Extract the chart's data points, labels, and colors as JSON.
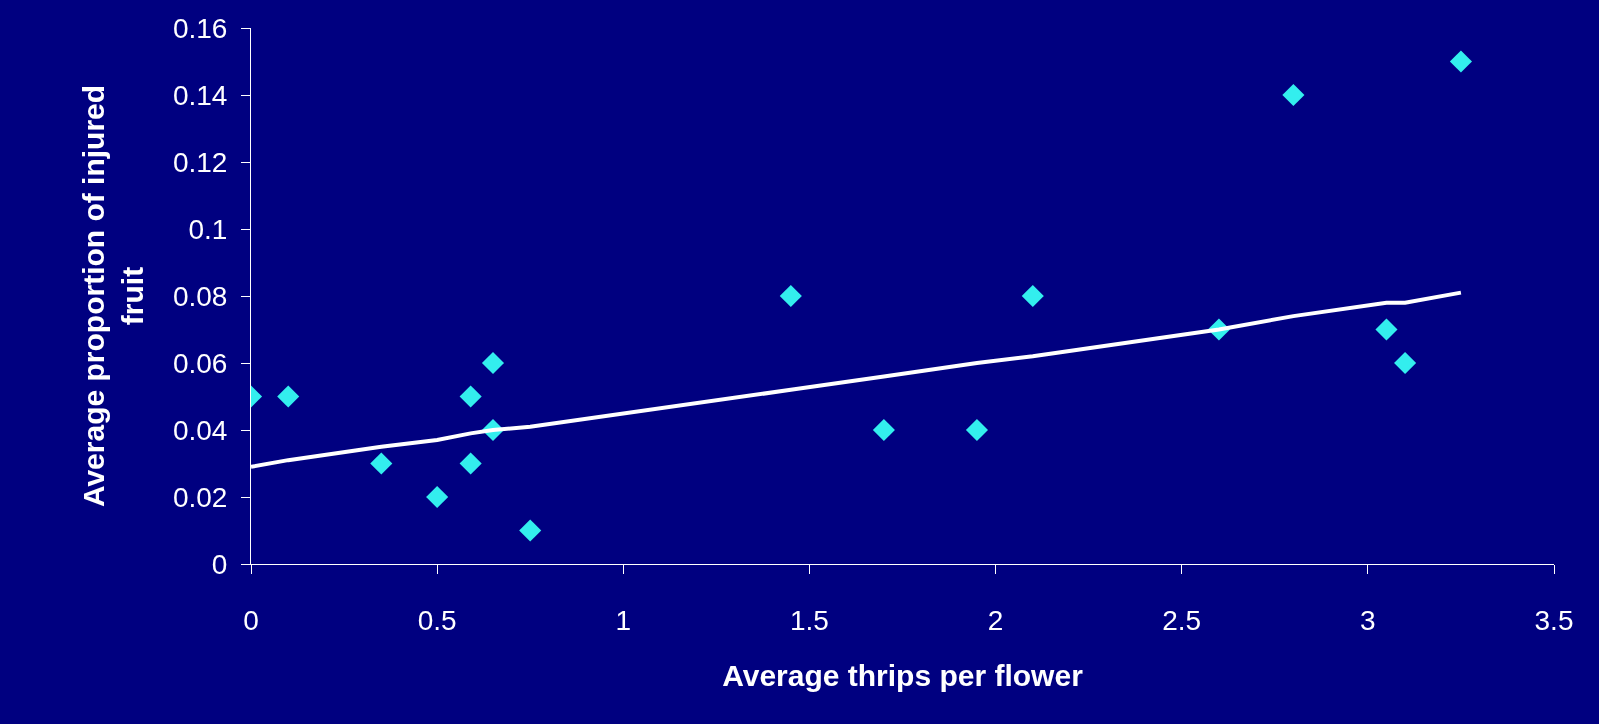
{
  "chart_data": {
    "type": "scatter",
    "xlabel": "Average thrips per flower",
    "ylabel": "Average proportion of injured fruit",
    "marker": "diamond",
    "grid": false,
    "xlim": [
      0,
      3.5
    ],
    "xticks": [
      0,
      0.5,
      1,
      1.5,
      2,
      2.5,
      3,
      3.5
    ],
    "ylim": [
      0,
      0.16
    ],
    "yticks": [
      0,
      0.02,
      0.04,
      0.06,
      0.08,
      0.1,
      0.12,
      0.14,
      0.16
    ],
    "series": [
      {
        "type": "scatter",
        "color": "#33eeee",
        "x": [
          0,
          0.1,
          0.35,
          0.5,
          0.59,
          0.59,
          0.65,
          0.65,
          0.75,
          1.45,
          1.7,
          1.95,
          2.1,
          2.6,
          2.8,
          3.05,
          3.1,
          3.25
        ],
        "values": [
          0.05,
          0.05,
          0.03,
          0.02,
          0.05,
          0.03,
          0.06,
          0.04,
          0.01,
          0.08,
          0.04,
          0.04,
          0.08,
          0.07,
          0.14,
          0.07,
          0.06,
          0.15
        ]
      },
      {
        "type": "line",
        "color": "#ffffff",
        "line_style": "solid",
        "marker": "none",
        "x": [
          0,
          0.1,
          0.35,
          0.5,
          0.59,
          0.65,
          0.75,
          1.45,
          1.7,
          1.95,
          2.1,
          2.6,
          2.8,
          3.05,
          3.1,
          3.25
        ],
        "values": [
          0.029,
          0.031,
          0.035,
          0.037,
          0.039,
          0.04,
          0.041,
          0.052,
          0.056,
          0.06,
          0.062,
          0.07,
          0.074,
          0.078,
          0.078,
          0.081
        ]
      }
    ]
  }
}
